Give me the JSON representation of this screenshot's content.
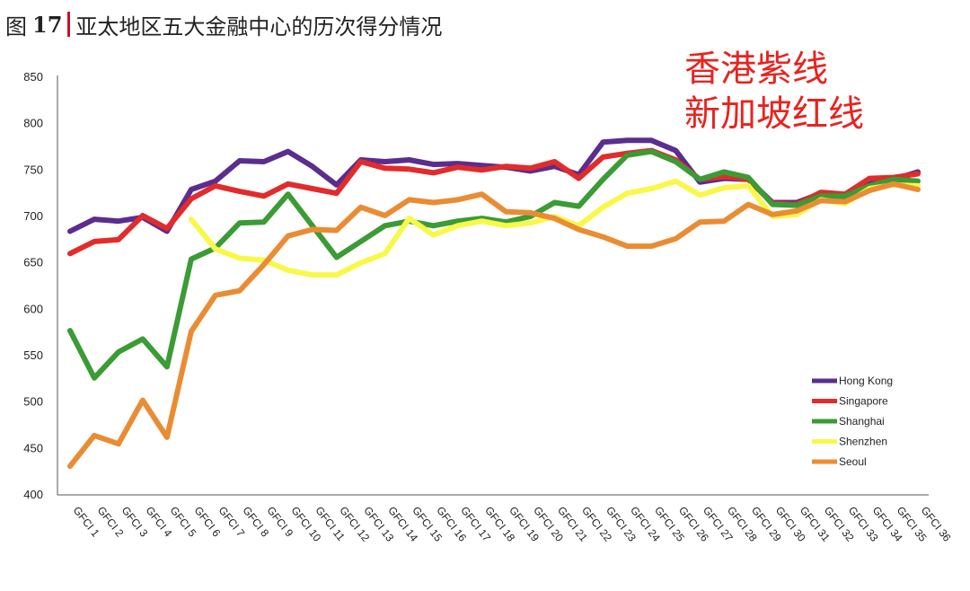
{
  "figure": {
    "label": "图",
    "number": "17",
    "title": "亚太地区五大金融中心的历次得分情况",
    "annotation_lines": [
      "香港紫线",
      "新加坡红线"
    ]
  },
  "chart_data": {
    "type": "line",
    "title": "",
    "xlabel": "",
    "ylabel": "",
    "ylim": [
      400,
      850
    ],
    "yticks": [
      400,
      450,
      500,
      550,
      600,
      650,
      700,
      750,
      800,
      850
    ],
    "grid": false,
    "legend_position": "bottom-right",
    "categories": [
      "GFCI 1",
      "GFCI 2",
      "GFCI 3",
      "GFCI 4",
      "GFCI 5",
      "GFCI 6",
      "GFCI 7",
      "GFCI 8",
      "GFCI 9",
      "GFCI 10",
      "GFCI 11",
      "GFCI 12",
      "GFCI 13",
      "GFCI 14",
      "GFCI 15",
      "GFCI 16",
      "GFCI 17",
      "GFCI 18",
      "GFCI 19",
      "GFCI 20",
      "GFCI 21",
      "GFCI 22",
      "GFCI 23",
      "GFCI 24",
      "GFCI 25",
      "GFCI 26",
      "GFCI 27",
      "GFCI 28",
      "GFCI 29",
      "GFCI 30",
      "GFCI 31",
      "GFCI 32",
      "GFCI 33",
      "GFCI 34",
      "GFCI 35",
      "GFCI 36"
    ],
    "series": [
      {
        "name": "Hong Kong",
        "color": "#5b2d8e",
        "values": [
          684,
          697,
          695,
          699,
          684,
          729,
          738,
          760,
          759,
          770,
          754,
          734,
          761,
          759,
          761,
          756,
          757,
          755,
          753,
          749,
          754,
          745,
          780,
          782,
          782,
          771,
          737,
          741,
          740,
          715,
          715,
          725,
          720,
          735,
          740,
          748
        ]
      },
      {
        "name": "Singapore",
        "color": "#e22b2b",
        "values": [
          660,
          673,
          675,
          701,
          687,
          719,
          733,
          727,
          722,
          735,
          730,
          725,
          759,
          752,
          751,
          747,
          753,
          750,
          754,
          752,
          759,
          741,
          764,
          768,
          771,
          761,
          740,
          743,
          740,
          714,
          713,
          726,
          724,
          741,
          742,
          746
        ]
      },
      {
        "name": "Shanghai",
        "color": "#3b9b35",
        "values": [
          577,
          526,
          554,
          568,
          538,
          654,
          666,
          693,
          694,
          724,
          690,
          656,
          673,
          690,
          695,
          690,
          695,
          698,
          694,
          700,
          715,
          711,
          740,
          766,
          770,
          759,
          740,
          748,
          742,
          713,
          712,
          722,
          722,
          733,
          740,
          738
        ]
      },
      {
        "name": "Shenzhen",
        "color": "#f8f84a",
        "values": [
          null,
          null,
          null,
          null,
          null,
          697,
          665,
          655,
          653,
          642,
          637,
          637,
          650,
          660,
          698,
          680,
          690,
          695,
          690,
          693,
          700,
          690,
          710,
          725,
          730,
          738,
          723,
          731,
          733,
          700,
          702,
          718,
          714,
          730,
          734,
          733
        ]
      },
      {
        "name": "Seoul",
        "color": "#ea8c34",
        "values": [
          431,
          464,
          455,
          502,
          462,
          576,
          615,
          620,
          648,
          679,
          686,
          685,
          710,
          701,
          718,
          715,
          718,
          724,
          705,
          704,
          698,
          686,
          678,
          668,
          668,
          676,
          694,
          695,
          713,
          702,
          706,
          717,
          716,
          728,
          735,
          729
        ]
      }
    ]
  }
}
